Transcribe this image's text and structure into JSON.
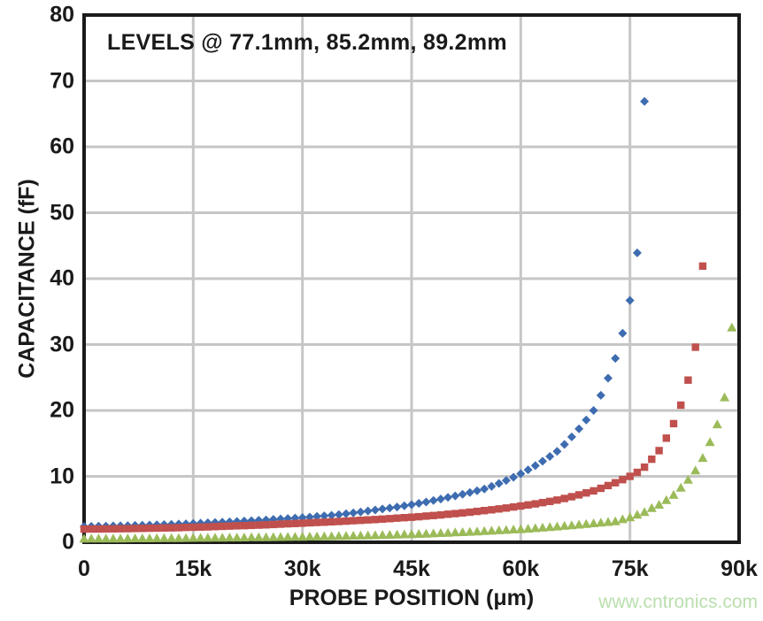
{
  "watermark": {
    "text": "www.cntronics.com",
    "color": "#b9dfad"
  },
  "chart_data": {
    "type": "scatter",
    "annotation": "LEVELS @ 77.1mm, 85.2mm, 89.2mm",
    "xlabel": "PROBE POSITION (μm)",
    "ylabel": "CAPACITANCE (fF)",
    "xlim": [
      0,
      90000
    ],
    "ylim": [
      0,
      80
    ],
    "grid": true,
    "legend": "none",
    "grid_color": "#c6c6c6",
    "axis_color": "#1a1a1a",
    "x_ticks": [
      {
        "value": 0,
        "label": "0"
      },
      {
        "value": 15000,
        "label": "15k"
      },
      {
        "value": 30000,
        "label": "30k"
      },
      {
        "value": 45000,
        "label": "45k"
      },
      {
        "value": 60000,
        "label": "60k"
      },
      {
        "value": 75000,
        "label": "75k"
      },
      {
        "value": 90000,
        "label": "90k"
      }
    ],
    "y_ticks": [
      {
        "value": 0,
        "label": "0"
      },
      {
        "value": 10,
        "label": "10"
      },
      {
        "value": 20,
        "label": "20"
      },
      {
        "value": 30,
        "label": "30"
      },
      {
        "value": 40,
        "label": "40"
      },
      {
        "value": 50,
        "label": "50"
      },
      {
        "value": 60,
        "label": "60"
      },
      {
        "value": 70,
        "label": "70"
      },
      {
        "value": 80,
        "label": "80"
      }
    ],
    "series": [
      {
        "name": "77.1mm",
        "marker": "diamond",
        "color": "#3e6cb0",
        "points": [
          [
            0,
            2.4
          ],
          [
            1000,
            2.42
          ],
          [
            2000,
            2.44
          ],
          [
            3000,
            2.46
          ],
          [
            4000,
            2.48
          ],
          [
            5000,
            2.5
          ],
          [
            6000,
            2.53
          ],
          [
            7000,
            2.56
          ],
          [
            8000,
            2.59
          ],
          [
            9000,
            2.62
          ],
          [
            10000,
            2.65
          ],
          [
            11000,
            2.69
          ],
          [
            12000,
            2.73
          ],
          [
            13000,
            2.77
          ],
          [
            14000,
            2.81
          ],
          [
            15000,
            2.85
          ],
          [
            16000,
            2.9
          ],
          [
            17000,
            2.95
          ],
          [
            18000,
            3.0
          ],
          [
            19000,
            3.05
          ],
          [
            20000,
            3.1
          ],
          [
            21000,
            3.16
          ],
          [
            22000,
            3.22
          ],
          [
            23000,
            3.28
          ],
          [
            24000,
            3.34
          ],
          [
            25000,
            3.4
          ],
          [
            26000,
            3.47
          ],
          [
            27000,
            3.54
          ],
          [
            28000,
            3.61
          ],
          [
            29000,
            3.68
          ],
          [
            30000,
            3.75
          ],
          [
            31000,
            3.83
          ],
          [
            32000,
            3.92
          ],
          [
            33000,
            4.01
          ],
          [
            34000,
            4.1
          ],
          [
            35000,
            4.2
          ],
          [
            36000,
            4.33
          ],
          [
            37000,
            4.46
          ],
          [
            38000,
            4.6
          ],
          [
            39000,
            4.75
          ],
          [
            40000,
            4.9
          ],
          [
            41000,
            5.05
          ],
          [
            42000,
            5.2
          ],
          [
            43000,
            5.36
          ],
          [
            44000,
            5.53
          ],
          [
            45000,
            5.7
          ],
          [
            46000,
            5.9
          ],
          [
            47000,
            6.11
          ],
          [
            48000,
            6.33
          ],
          [
            49000,
            6.56
          ],
          [
            50000,
            6.8
          ],
          [
            51000,
            7.04
          ],
          [
            52000,
            7.29
          ],
          [
            53000,
            7.55
          ],
          [
            54000,
            7.82
          ],
          [
            55000,
            8.1
          ],
          [
            56000,
            8.5
          ],
          [
            57000,
            8.92
          ],
          [
            58000,
            9.38
          ],
          [
            59000,
            9.87
          ],
          [
            60000,
            10.4
          ],
          [
            61000,
            10.99
          ],
          [
            62000,
            11.62
          ],
          [
            63000,
            12.3
          ],
          [
            64000,
            13.02
          ],
          [
            65000,
            13.8
          ],
          [
            66000,
            14.85
          ],
          [
            67000,
            15.99
          ],
          [
            68000,
            17.22
          ],
          [
            69000,
            18.56
          ],
          [
            70000,
            20.0
          ],
          [
            71000,
            22.3
          ],
          [
            72000,
            24.9
          ],
          [
            73000,
            27.9
          ],
          [
            74000,
            31.7
          ],
          [
            75000,
            36.7
          ],
          [
            76000,
            43.9
          ],
          [
            77000,
            66.9
          ]
        ]
      },
      {
        "name": "85.2mm",
        "marker": "square",
        "color": "#c0504d",
        "points": [
          [
            0,
            2.0
          ],
          [
            1000,
            2.01
          ],
          [
            2000,
            2.02
          ],
          [
            3000,
            2.03
          ],
          [
            4000,
            2.04
          ],
          [
            5000,
            2.05
          ],
          [
            6000,
            2.07
          ],
          [
            7000,
            2.09
          ],
          [
            8000,
            2.11
          ],
          [
            9000,
            2.13
          ],
          [
            10000,
            2.15
          ],
          [
            11000,
            2.17
          ],
          [
            12000,
            2.19
          ],
          [
            13000,
            2.22
          ],
          [
            14000,
            2.25
          ],
          [
            15000,
            2.28
          ],
          [
            16000,
            2.31
          ],
          [
            17000,
            2.34
          ],
          [
            18000,
            2.38
          ],
          [
            19000,
            2.42
          ],
          [
            20000,
            2.45
          ],
          [
            21000,
            2.49
          ],
          [
            22000,
            2.53
          ],
          [
            23000,
            2.57
          ],
          [
            24000,
            2.61
          ],
          [
            25000,
            2.65
          ],
          [
            26000,
            2.7
          ],
          [
            27000,
            2.75
          ],
          [
            28000,
            2.8
          ],
          [
            29000,
            2.85
          ],
          [
            30000,
            2.9
          ],
          [
            31000,
            2.95
          ],
          [
            32000,
            3.0
          ],
          [
            33000,
            3.05
          ],
          [
            34000,
            3.1
          ],
          [
            35000,
            3.15
          ],
          [
            36000,
            3.21
          ],
          [
            37000,
            3.27
          ],
          [
            38000,
            3.33
          ],
          [
            39000,
            3.39
          ],
          [
            40000,
            3.45
          ],
          [
            41000,
            3.52
          ],
          [
            42000,
            3.59
          ],
          [
            43000,
            3.66
          ],
          [
            44000,
            3.73
          ],
          [
            45000,
            3.8
          ],
          [
            46000,
            3.88
          ],
          [
            47000,
            3.97
          ],
          [
            48000,
            4.06
          ],
          [
            49000,
            4.15
          ],
          [
            50000,
            4.25
          ],
          [
            51000,
            4.35
          ],
          [
            52000,
            4.46
          ],
          [
            53000,
            4.57
          ],
          [
            54000,
            4.68
          ],
          [
            55000,
            4.8
          ],
          [
            56000,
            4.93
          ],
          [
            57000,
            5.06
          ],
          [
            58000,
            5.2
          ],
          [
            59000,
            5.35
          ],
          [
            60000,
            5.5
          ],
          [
            61000,
            5.66
          ],
          [
            62000,
            5.83
          ],
          [
            63000,
            6.01
          ],
          [
            64000,
            6.2
          ],
          [
            65000,
            6.4
          ],
          [
            66000,
            6.65
          ],
          [
            67000,
            6.91
          ],
          [
            68000,
            7.19
          ],
          [
            69000,
            7.49
          ],
          [
            70000,
            7.8
          ],
          [
            71000,
            8.19
          ],
          [
            72000,
            8.6
          ],
          [
            73000,
            9.03
          ],
          [
            74000,
            9.5
          ],
          [
            75000,
            10.0
          ],
          [
            76000,
            10.6
          ],
          [
            77000,
            11.4
          ],
          [
            78000,
            12.6
          ],
          [
            79000,
            13.9
          ],
          [
            80000,
            15.8
          ],
          [
            81000,
            18.0
          ],
          [
            82000,
            20.8
          ],
          [
            83000,
            24.6
          ],
          [
            84000,
            29.6
          ],
          [
            85000,
            41.9
          ]
        ]
      },
      {
        "name": "89.2mm",
        "marker": "triangle",
        "color": "#9bbb59",
        "points": [
          [
            0,
            0.55
          ],
          [
            1000,
            0.56
          ],
          [
            2000,
            0.56
          ],
          [
            3000,
            0.57
          ],
          [
            4000,
            0.58
          ],
          [
            5000,
            0.58
          ],
          [
            6000,
            0.59
          ],
          [
            7000,
            0.6
          ],
          [
            8000,
            0.61
          ],
          [
            9000,
            0.61
          ],
          [
            10000,
            0.62
          ],
          [
            11000,
            0.63
          ],
          [
            12000,
            0.64
          ],
          [
            13000,
            0.65
          ],
          [
            14000,
            0.66
          ],
          [
            15000,
            0.67
          ],
          [
            16000,
            0.68
          ],
          [
            17000,
            0.69
          ],
          [
            18000,
            0.7
          ],
          [
            19000,
            0.71
          ],
          [
            20000,
            0.72
          ],
          [
            21000,
            0.73
          ],
          [
            22000,
            0.74
          ],
          [
            23000,
            0.76
          ],
          [
            24000,
            0.77
          ],
          [
            25000,
            0.78
          ],
          [
            26000,
            0.79
          ],
          [
            27000,
            0.81
          ],
          [
            28000,
            0.82
          ],
          [
            29000,
            0.84
          ],
          [
            30000,
            0.85
          ],
          [
            31000,
            0.87
          ],
          [
            32000,
            0.89
          ],
          [
            33000,
            0.91
          ],
          [
            34000,
            0.93
          ],
          [
            35000,
            0.95
          ],
          [
            36000,
            0.98
          ],
          [
            37000,
            1.0
          ],
          [
            38000,
            1.02
          ],
          [
            39000,
            1.05
          ],
          [
            40000,
            1.08
          ],
          [
            41000,
            1.11
          ],
          [
            42000,
            1.14
          ],
          [
            43000,
            1.17
          ],
          [
            44000,
            1.21
          ],
          [
            45000,
            1.25
          ],
          [
            46000,
            1.28
          ],
          [
            47000,
            1.32
          ],
          [
            48000,
            1.36
          ],
          [
            49000,
            1.41
          ],
          [
            50000,
            1.45
          ],
          [
            51000,
            1.5
          ],
          [
            52000,
            1.55
          ],
          [
            53000,
            1.6
          ],
          [
            54000,
            1.65
          ],
          [
            55000,
            1.7
          ],
          [
            56000,
            1.76
          ],
          [
            57000,
            1.82
          ],
          [
            58000,
            1.88
          ],
          [
            59000,
            1.94
          ],
          [
            60000,
            2.0
          ],
          [
            61000,
            2.07
          ],
          [
            62000,
            2.15
          ],
          [
            63000,
            2.23
          ],
          [
            64000,
            2.31
          ],
          [
            65000,
            2.4
          ],
          [
            66000,
            2.49
          ],
          [
            67000,
            2.58
          ],
          [
            68000,
            2.68
          ],
          [
            69000,
            2.78
          ],
          [
            70000,
            2.88
          ],
          [
            71000,
            2.98
          ],
          [
            72000,
            3.09
          ],
          [
            73000,
            3.2
          ],
          [
            74000,
            3.5
          ],
          [
            75000,
            3.8
          ],
          [
            76000,
            4.2
          ],
          [
            77000,
            4.6
          ],
          [
            78000,
            5.2
          ],
          [
            79000,
            5.7
          ],
          [
            80000,
            6.4
          ],
          [
            81000,
            7.2
          ],
          [
            82000,
            8.3
          ],
          [
            83000,
            9.5
          ],
          [
            84000,
            10.9
          ],
          [
            85000,
            12.8
          ],
          [
            86000,
            15.2
          ],
          [
            87000,
            17.9
          ],
          [
            88000,
            22.0
          ],
          [
            89000,
            32.6
          ]
        ]
      }
    ]
  }
}
